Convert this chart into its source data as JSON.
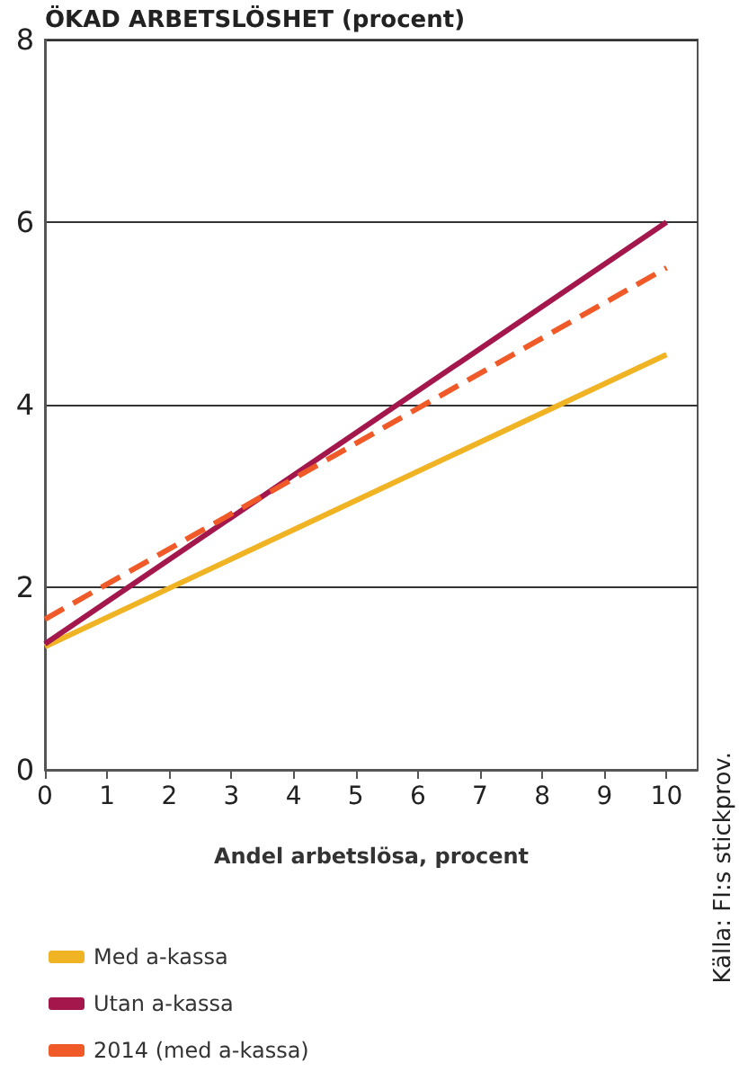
{
  "chart_data": {
    "type": "line",
    "title": "ÖKAD ARBETSLÖSHET (procent)",
    "xlabel": "Andel arbetslösa, procent",
    "x": [
      0,
      10
    ],
    "series": [
      {
        "name": "Med a-kassa",
        "color": "#f0b323",
        "values": [
          1.35,
          4.55
        ]
      },
      {
        "name": "Utan a-kassa",
        "color": "#a3174d",
        "values": [
          1.38,
          6.0
        ]
      },
      {
        "name": "2014 (med a-kassa)",
        "color": "#f05a28",
        "values": [
          1.65,
          5.5
        ],
        "line_style": "dashed"
      }
    ],
    "xlim": [
      0,
      10.5
    ],
    "xticks": [
      0,
      1,
      2,
      3,
      4,
      5,
      6,
      7,
      8,
      9,
      10
    ],
    "ylim": [
      0,
      8
    ],
    "yticks": [
      0,
      2,
      4,
      6,
      8
    ],
    "grid": "y",
    "legend": "bottom",
    "marker": "none",
    "annotations": [
      "Källa: FI:s stickprov."
    ]
  }
}
